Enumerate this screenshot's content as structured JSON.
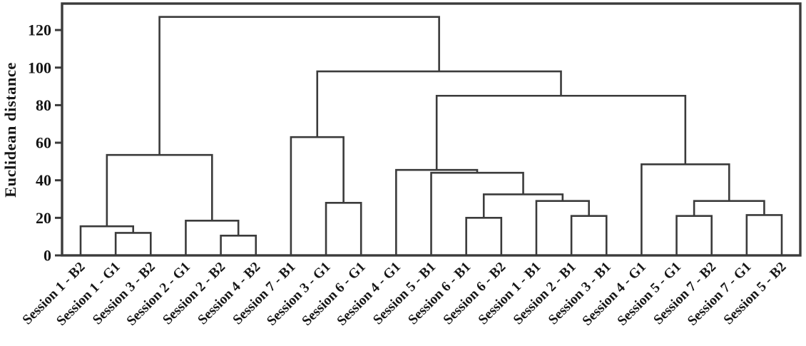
{
  "figure": {
    "background": "#ffffff",
    "line_color": "#3b3b3b",
    "text_color": "#161616"
  },
  "chart_data": {
    "type": "dendrogram",
    "orientation": "vertical",
    "title": "",
    "xlabel": "",
    "ylabel": "Euclidean distance",
    "yticks": [
      0,
      20,
      40,
      60,
      80,
      100,
      120
    ],
    "ylim": [
      0,
      134
    ],
    "grid": false,
    "frame": "full-box",
    "leaves": [
      "Session 1 - B2",
      "Session 1 - G1",
      "Session 3 - B2",
      "Session 2 - G1",
      "Session 2 - B2",
      "Session 4 - B2",
      "Session 7 - B1",
      "Session 3 - G1",
      "Session 6 - G1",
      "Session 4 - G1",
      "Session 5 - B1",
      "Session 6 - B1",
      "Session 6 - B2",
      "Session 1 - B1",
      "Session 2 - B1",
      "Session 3 - B1",
      "Session 4 - G1",
      "Session 5 - G1",
      "Session 7 - B2",
      "Session 7 - G1",
      "Session 5 - B2"
    ],
    "merges": [
      {
        "a": "L1",
        "b": "L2",
        "height": 12
      },
      {
        "a": "L0",
        "b": "M0",
        "height": 15.5
      },
      {
        "a": "L4",
        "b": "L5",
        "height": 10.5
      },
      {
        "a": "L3",
        "b": "M2",
        "height": 18.5
      },
      {
        "a": "M1",
        "b": "M3",
        "height": 53.5
      },
      {
        "a": "L7",
        "b": "L8",
        "height": 28
      },
      {
        "a": "L6",
        "b": "M5",
        "height": 63
      },
      {
        "a": "L11",
        "b": "L12",
        "height": 20
      },
      {
        "a": "L14",
        "b": "L15",
        "height": 21
      },
      {
        "a": "L13",
        "b": "M8",
        "height": 29
      },
      {
        "a": "M7",
        "b": "M9",
        "height": 32.5
      },
      {
        "a": "L10",
        "b": "M10",
        "height": 44
      },
      {
        "a": "L9",
        "b": "M11",
        "height": 45.5
      },
      {
        "a": "L17",
        "b": "L18",
        "height": 21
      },
      {
        "a": "L19",
        "b": "L20",
        "height": 21.5
      },
      {
        "a": "M13",
        "b": "M14",
        "height": 29
      },
      {
        "a": "L16",
        "b": "M15",
        "height": 48.5
      },
      {
        "a": "M12",
        "b": "M16",
        "height": 85
      },
      {
        "a": "M6",
        "b": "M17",
        "height": 98
      },
      {
        "a": "M4",
        "b": "M18",
        "height": 127
      }
    ]
  }
}
